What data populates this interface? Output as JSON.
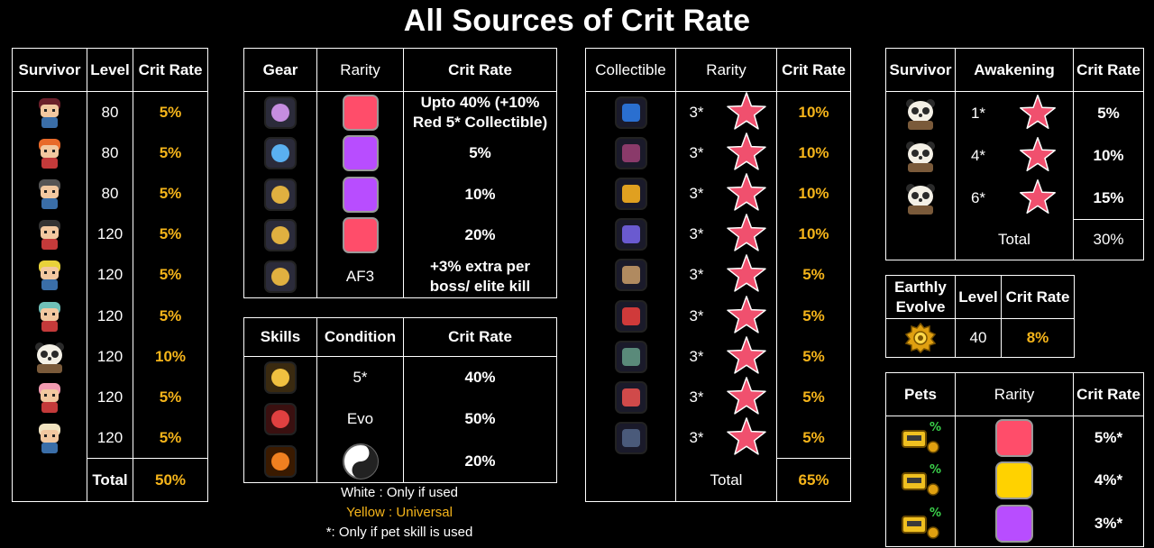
{
  "title": "All Sources of Crit Rate",
  "colors": {
    "yellow": "#f5b41a",
    "red": "#ff4d6a",
    "purple": "#b84dff",
    "gold": "#ffd200",
    "star": "#f0506e"
  },
  "survivors": {
    "headers": [
      "Survivor",
      "Level",
      "Crit Rate"
    ],
    "rows": [
      {
        "icon": "survivor-avatar-icon",
        "level": "80",
        "crit": "5%"
      },
      {
        "icon": "survivor-avatar-icon",
        "level": "80",
        "crit": "5%"
      },
      {
        "icon": "survivor-avatar-icon",
        "level": "80",
        "crit": "5%"
      },
      {
        "icon": "survivor-avatar-icon",
        "level": "120",
        "crit": "5%"
      },
      {
        "icon": "survivor-avatar-icon",
        "level": "120",
        "crit": "5%"
      },
      {
        "icon": "survivor-avatar-icon",
        "level": "120",
        "crit": "5%"
      },
      {
        "icon": "panda-survivor-icon",
        "level": "120",
        "crit": "10%"
      },
      {
        "icon": "survivor-avatar-icon",
        "level": "120",
        "crit": "5%"
      },
      {
        "icon": "survivor-avatar-icon",
        "level": "120",
        "crit": "5%"
      }
    ],
    "total_label": "Total",
    "total_value": "50%"
  },
  "gear": {
    "headers": [
      "Gear",
      "Rarity",
      "Crit Rate"
    ],
    "rows": [
      {
        "icon": "necklace-icon",
        "rarity": "red",
        "crit": "Upto 40% (+10% Red 5* Collectible)"
      },
      {
        "icon": "glove-icon",
        "rarity": "purple",
        "crit": "5%"
      },
      {
        "icon": "gauntlet-icon",
        "rarity": "purple",
        "crit": "10%"
      },
      {
        "icon": "gauntlet-icon",
        "rarity": "red",
        "crit": "20%"
      },
      {
        "icon": "gauntlet-icon",
        "rarity_text": "AF3",
        "crit": "+3% extra per boss/ elite kill"
      }
    ]
  },
  "skills": {
    "headers": [
      "Skills",
      "Condition",
      "Crit Rate"
    ],
    "rows": [
      {
        "icon": "bullet-skill-icon",
        "condition": "5*",
        "crit": "40%"
      },
      {
        "icon": "flame-bullet-icon",
        "condition": "Evo",
        "crit": "50%"
      },
      {
        "icon": "fire-paw-icon",
        "condition_icon": "yin-yang-paw-icon",
        "crit": "20%"
      }
    ]
  },
  "legend": {
    "white": "White : Only if used",
    "yellow": "Yellow : Universal",
    "note": "*: Only if pet skill is used"
  },
  "collectibles": {
    "headers": [
      "Collectible",
      "Rarity",
      "Crit Rate"
    ],
    "rows": [
      {
        "icon": "safe-icon",
        "stars": "3*",
        "crit": "10%"
      },
      {
        "icon": "book-icon",
        "stars": "3*",
        "crit": "10%"
      },
      {
        "icon": "staff-icon",
        "stars": "3*",
        "crit": "10%"
      },
      {
        "icon": "crystal-icon",
        "stars": "3*",
        "crit": "10%"
      },
      {
        "icon": "tablet-icon",
        "stars": "3*",
        "crit": "5%"
      },
      {
        "icon": "heart-icon",
        "stars": "3*",
        "crit": "5%"
      },
      {
        "icon": "scroll-icon",
        "stars": "3*",
        "crit": "5%"
      },
      {
        "icon": "gift-icon",
        "stars": "3*",
        "crit": "5%"
      },
      {
        "icon": "locker-icon",
        "stars": "3*",
        "crit": "5%"
      }
    ],
    "total_label": "Total",
    "total_value": "65%"
  },
  "awakening": {
    "headers": [
      "Survivor",
      "Awakening",
      "Crit Rate"
    ],
    "rows": [
      {
        "icon": "panda-survivor-icon",
        "stars": "1*",
        "crit": "5%"
      },
      {
        "icon": "panda-survivor-icon",
        "stars": "4*",
        "crit": "10%"
      },
      {
        "icon": "panda-survivor-icon",
        "stars": "6*",
        "crit": "15%"
      }
    ],
    "total_label": "Total",
    "total_value": "30%"
  },
  "earthly": {
    "headers": [
      "Earthly Evolve",
      "Level",
      "Crit Rate"
    ],
    "row": {
      "icon": "gear-badge-icon",
      "level": "40",
      "crit": "8%"
    }
  },
  "pets": {
    "headers": [
      "Pets",
      "Rarity",
      "Crit Rate"
    ],
    "rows": [
      {
        "icon": "pet-robot-icon",
        "rarity": "red",
        "crit": "5%*"
      },
      {
        "icon": "pet-robot-icon",
        "rarity": "gold",
        "crit": "4%*"
      },
      {
        "icon": "pet-robot-icon",
        "rarity": "purple",
        "crit": "3%*"
      }
    ]
  }
}
